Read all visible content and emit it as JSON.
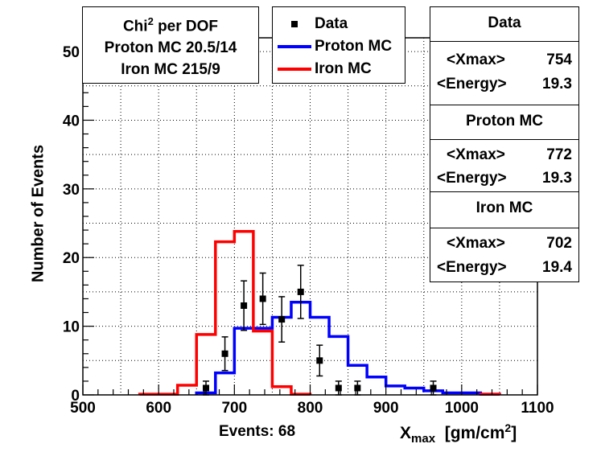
{
  "chi_box": {
    "line1_prefix": "Chi",
    "line1_sup": "2",
    "line1_suffix": " per DOF",
    "line2": "Proton MC 20.5/14",
    "line3": "Iron MC 215/9"
  },
  "legend": {
    "items": [
      {
        "label": "Data",
        "symbol": "marker",
        "color": "#000000"
      },
      {
        "label": "Proton MC",
        "symbol": "line",
        "color": "#0000ff"
      },
      {
        "label": "Iron MC",
        "symbol": "line",
        "color": "#ff0000"
      }
    ]
  },
  "stats": [
    {
      "title": "Data",
      "xmax_label": "<Xmax>",
      "xmax": "754",
      "energy_label": "<Energy>",
      "energy": "19.3"
    },
    {
      "title": "Proton MC",
      "xmax_label": "<Xmax>",
      "xmax": "772",
      "energy_label": "<Energy>",
      "energy": "19.3"
    },
    {
      "title": "Iron MC",
      "xmax_label": "<Xmax>",
      "xmax": "702",
      "energy_label": "<Energy>",
      "energy": "19.4"
    }
  ],
  "events_label": "Events: 68",
  "chart_data": {
    "type": "histogram",
    "xlabel_main": "X",
    "xlabel_sub": "max",
    "xlabel_unit": "[gm/cm",
    "xlabel_sup": "2",
    "xlabel_close": "]",
    "ylabel": "Number of Events",
    "xlim": [
      500,
      1100
    ],
    "ylim": [
      0,
      52
    ],
    "x_ticks": [
      500,
      600,
      700,
      800,
      900,
      1000,
      1100
    ],
    "y_ticks": [
      0,
      10,
      20,
      30,
      40,
      50
    ],
    "grid": true,
    "bin_width": 25,
    "series": [
      {
        "name": "Proton MC",
        "color": "#0000ff",
        "bins": [
          [
            650,
            0.3
          ],
          [
            675,
            3.2
          ],
          [
            700,
            9.7
          ],
          [
            725,
            9.7
          ],
          [
            750,
            11.3
          ],
          [
            775,
            13.5
          ],
          [
            800,
            11.3
          ],
          [
            825,
            8.5
          ],
          [
            850,
            4.3
          ],
          [
            875,
            2.6
          ],
          [
            900,
            1.3
          ],
          [
            925,
            1.0
          ],
          [
            950,
            0.6
          ],
          [
            975,
            0.3
          ],
          [
            1000,
            0.3
          ],
          [
            1025,
            0.1
          ]
        ]
      },
      {
        "name": "Iron MC",
        "color": "#ff0000",
        "bins": [
          [
            575,
            0.1
          ],
          [
            600,
            0.1
          ],
          [
            625,
            1.4
          ],
          [
            650,
            8.8
          ],
          [
            675,
            22.3
          ],
          [
            700,
            23.8
          ],
          [
            725,
            9.3
          ],
          [
            750,
            1.2
          ],
          [
            775,
            0.1
          ],
          [
            1025,
            0.1
          ]
        ]
      },
      {
        "name": "Data",
        "color": "#000000",
        "points": [
          {
            "x": 662.5,
            "y": 1,
            "err": 1.0
          },
          {
            "x": 687.5,
            "y": 6,
            "err": 2.45
          },
          {
            "x": 712.5,
            "y": 13,
            "err": 3.6
          },
          {
            "x": 737.5,
            "y": 14,
            "err": 3.74
          },
          {
            "x": 762.5,
            "y": 11,
            "err": 3.3
          },
          {
            "x": 787.5,
            "y": 15,
            "err": 3.87
          },
          {
            "x": 812.5,
            "y": 5,
            "err": 2.24
          },
          {
            "x": 837.5,
            "y": 1,
            "err": 1.0
          },
          {
            "x": 862.5,
            "y": 1,
            "err": 1.0
          },
          {
            "x": 962.5,
            "y": 1,
            "err": 1.0
          }
        ]
      }
    ]
  }
}
